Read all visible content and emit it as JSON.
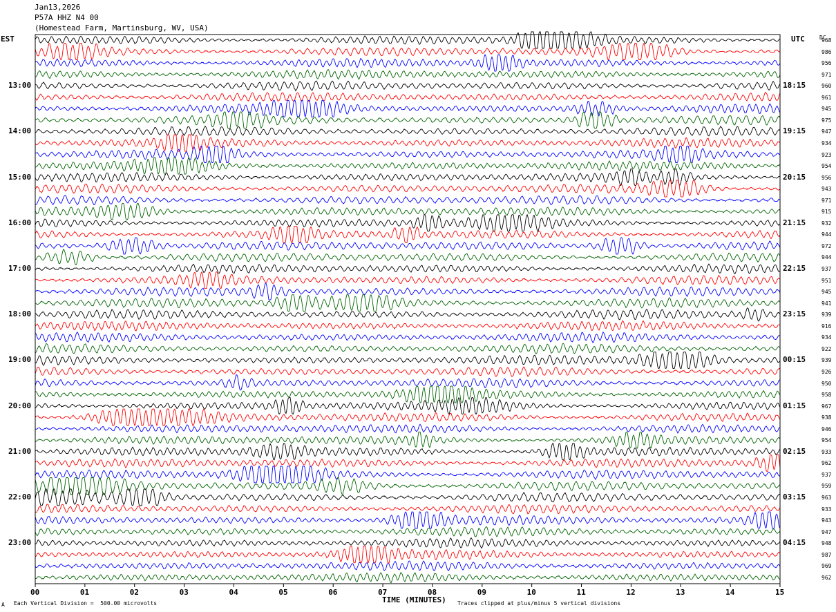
{
  "header": {
    "date": "Jan13,2026",
    "station": "P57A HHZ N4 00",
    "location": "(Homestead Farm, Martinsburg, WV, USA)"
  },
  "left_axis_title": "EST",
  "right_axis_title": "UTC",
  "dc_title": "DC",
  "chart_data": {
    "type": "line",
    "description_kind": "helicorder",
    "xlabel": "TIME (MINUTES)",
    "x_ticks": [
      "00",
      "01",
      "02",
      "03",
      "04",
      "05",
      "06",
      "07",
      "08",
      "09",
      "10",
      "11",
      "12",
      "13",
      "14",
      "15"
    ],
    "xlim": [
      0,
      15
    ],
    "left_hour_labels": [
      "13:00",
      "14:00",
      "15:00",
      "16:00",
      "17:00",
      "18:00",
      "19:00",
      "20:00",
      "21:00",
      "22:00",
      "23:00"
    ],
    "right_hour_labels": [
      "18:15",
      "19:15",
      "20:15",
      "21:15",
      "22:15",
      "23:15",
      "00:15",
      "01:15",
      "02:15",
      "03:15",
      "04:15"
    ],
    "hour_label_first_trace": 4,
    "traces_per_hour": 4,
    "trace_colors": [
      "#000000",
      "#ff0000",
      "#0000ff",
      "#006400"
    ],
    "dc_values": [
      "968",
      "986",
      "956",
      "971",
      "960",
      "961",
      "945",
      "975",
      "947",
      "934",
      "923",
      "954",
      "956",
      "943",
      "971",
      "915",
      "932",
      "944",
      "972",
      "944",
      "937",
      "951",
      "945",
      "941",
      "939",
      "916",
      "934",
      "922",
      "939",
      "926",
      "950",
      "958",
      "967",
      "938",
      "946",
      "954",
      "933",
      "962",
      "937",
      "959",
      "963",
      "933",
      "943",
      "947",
      "948",
      "987",
      "969",
      "962"
    ]
  },
  "footer": {
    "scale_note": "Each Vertical Division =  500.00 microvolts",
    "clip_note": "Traces clipped at plus/minus 5 vertical divisions",
    "corner_mark": "A"
  }
}
